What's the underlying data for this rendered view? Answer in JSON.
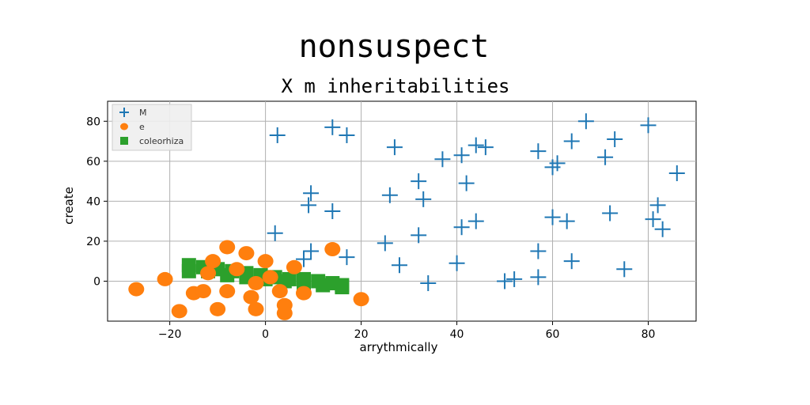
{
  "chart_data": {
    "type": "scatter",
    "title": "nonsuspect",
    "subtitle": "X m inheritabilities",
    "xlabel": "arrythmically",
    "ylabel": "create",
    "xlim": [
      -33,
      90
    ],
    "ylim": [
      -20,
      90
    ],
    "xticks": [
      -20,
      0,
      20,
      40,
      60,
      80
    ],
    "yticks": [
      0,
      20,
      40,
      60,
      80
    ],
    "grid": true,
    "legend_position": "top-left",
    "series": [
      {
        "name": "M",
        "marker": "plus",
        "color": "#1f77b4",
        "points": [
          [
            2.5,
            73
          ],
          [
            14,
            77
          ],
          [
            17,
            73
          ],
          [
            9.5,
            44
          ],
          [
            9,
            38
          ],
          [
            14,
            35
          ],
          [
            2,
            24
          ],
          [
            9.5,
            15
          ],
          [
            8,
            11
          ],
          [
            17,
            12
          ],
          [
            27,
            67
          ],
          [
            26,
            43
          ],
          [
            25,
            19
          ],
          [
            28,
            8
          ],
          [
            32,
            50
          ],
          [
            33,
            41
          ],
          [
            32,
            23
          ],
          [
            34,
            -1
          ],
          [
            37,
            61
          ],
          [
            41,
            63
          ],
          [
            42,
            49
          ],
          [
            44,
            68
          ],
          [
            46,
            67
          ],
          [
            41,
            27
          ],
          [
            44,
            30
          ],
          [
            40,
            9
          ],
          [
            50,
            0
          ],
          [
            52,
            1
          ],
          [
            57,
            65
          ],
          [
            60,
            57
          ],
          [
            61,
            59
          ],
          [
            60,
            32
          ],
          [
            63,
            30
          ],
          [
            57,
            15
          ],
          [
            57,
            2
          ],
          [
            64,
            10
          ],
          [
            64,
            70
          ],
          [
            67,
            80
          ],
          [
            71,
            62
          ],
          [
            73,
            71
          ],
          [
            72,
            34
          ],
          [
            75,
            6
          ],
          [
            80,
            78
          ],
          [
            82,
            38
          ],
          [
            81,
            31
          ],
          [
            83,
            26
          ],
          [
            86,
            54
          ]
        ]
      },
      {
        "name": "e",
        "marker": "circle",
        "color": "#ff7f0e",
        "points": [
          [
            -27,
            -4
          ],
          [
            -21,
            1
          ],
          [
            -18,
            -15
          ],
          [
            -15,
            -6
          ],
          [
            -13,
            -5
          ],
          [
            -11,
            10
          ],
          [
            -12,
            4
          ],
          [
            -10,
            -14
          ],
          [
            -8,
            17
          ],
          [
            -8,
            -5
          ],
          [
            -6,
            6
          ],
          [
            -4,
            14
          ],
          [
            -3,
            -8
          ],
          [
            -2,
            -1
          ],
          [
            -2,
            -14
          ],
          [
            0,
            10
          ],
          [
            1,
            2
          ],
          [
            3,
            -5
          ],
          [
            4,
            -12
          ],
          [
            4,
            -16
          ],
          [
            6,
            7
          ],
          [
            8,
            -6
          ],
          [
            14,
            16
          ],
          [
            20,
            -9
          ]
        ]
      },
      {
        "name": "coleorhiza",
        "marker": "square",
        "color": "#2ca02c",
        "points": [
          [
            -16,
            8
          ],
          [
            -13,
            7
          ],
          [
            -10,
            6
          ],
          [
            -7,
            5
          ],
          [
            -4,
            4
          ],
          [
            -1,
            3
          ],
          [
            2,
            2
          ],
          [
            5,
            1
          ],
          [
            8,
            1
          ],
          [
            11,
            0
          ],
          [
            14,
            -1
          ],
          [
            16,
            -2
          ],
          [
            -16,
            5
          ],
          [
            -12,
            5
          ],
          [
            -8,
            3
          ],
          [
            -4,
            2
          ],
          [
            0,
            1
          ],
          [
            4,
            0
          ],
          [
            8,
            -1
          ],
          [
            12,
            -2
          ],
          [
            16,
            -3
          ]
        ]
      }
    ]
  }
}
